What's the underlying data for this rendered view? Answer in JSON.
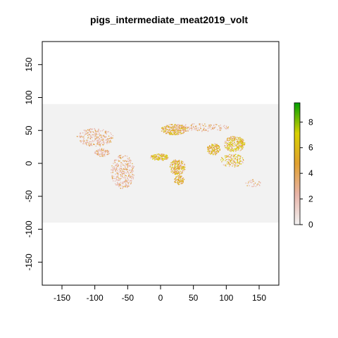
{
  "title": "pigs_intermediate_meat2019_volt",
  "map": {
    "x_ticks": [
      -150,
      -100,
      -50,
      0,
      50,
      100,
      150
    ],
    "y_ticks": [
      -150,
      -100,
      -50,
      0,
      50,
      100,
      150
    ],
    "x_range": [
      -180,
      180
    ],
    "y_range": [
      -185,
      185
    ],
    "raster_extent": {
      "lon": [
        -180,
        180
      ],
      "lat": [
        -90,
        90
      ]
    },
    "colors": {
      "background": "#f2f2f2",
      "low": "#e8b4a8",
      "mid": "#e0a030",
      "high": "#d8d000",
      "max": "#00a000"
    }
  },
  "legend": {
    "min": 0,
    "max": 9.5,
    "ticks": [
      0,
      2,
      4,
      6,
      8
    ],
    "gradient": [
      "#f2f2f2",
      "#e8b4a8",
      "#e0a030",
      "#d8d000",
      "#00a000"
    ]
  }
}
